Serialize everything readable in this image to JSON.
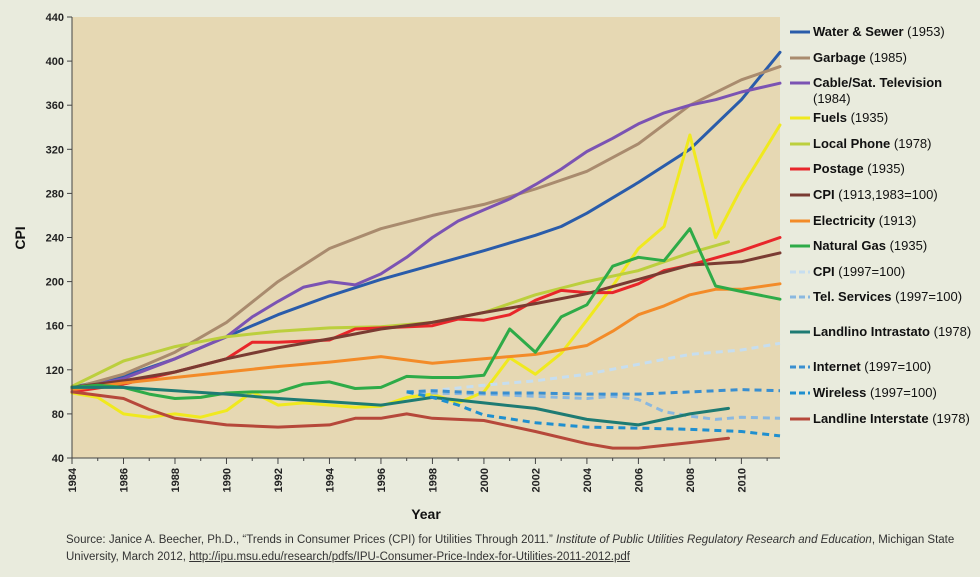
{
  "chart_data": {
    "type": "line",
    "xlabel": "Year",
    "ylabel": "CPI",
    "xlim": [
      1984,
      2011.5
    ],
    "ylim": [
      40,
      440
    ],
    "x_ticks": [
      "1984",
      "1986",
      "1988",
      "1990",
      "1992",
      "1994",
      "1996",
      "1998",
      "2000",
      "2002",
      "2004",
      "2006",
      "2008",
      "2010"
    ],
    "y_ticks": [
      "40",
      "80",
      "120",
      "160",
      "200",
      "240",
      "280",
      "320",
      "360",
      "400",
      "440"
    ],
    "plot_background": "#e6d8b3",
    "grid": false,
    "legend_position": "right",
    "series": [
      {
        "name": "Water & Sewer",
        "year_label": "(1953)",
        "color": "#2a5caa",
        "dashed": false,
        "x": [
          1984,
          1986,
          1988,
          1990,
          1992,
          1994,
          1996,
          1998,
          2000,
          2002,
          2003,
          2004,
          2006,
          2008,
          2010,
          2011.5
        ],
        "y": [
          104,
          114,
          130,
          150,
          170,
          187,
          202,
          215,
          228,
          242,
          250,
          262,
          290,
          320,
          365,
          408
        ]
      },
      {
        "name": "Garbage",
        "year_label": "(1985)",
        "color": "#a98b6e",
        "dashed": false,
        "x": [
          1984,
          1986,
          1988,
          1990,
          1992,
          1994,
          1996,
          1998,
          2000,
          2002,
          2004,
          2006,
          2008,
          2010,
          2011.5
        ],
        "y": [
          103,
          116,
          136,
          163,
          200,
          230,
          248,
          260,
          270,
          284,
          300,
          325,
          360,
          383,
          395
        ]
      },
      {
        "name": "Cable/Sat. Television",
        "year_label": "(1984)",
        "color": "#7b53b3",
        "dashed": false,
        "x": [
          1984,
          1986,
          1988,
          1990,
          1991,
          1992,
          1993,
          1994,
          1995,
          1996,
          1997,
          1998,
          1999,
          2000,
          2001,
          2002,
          2003,
          2004,
          2005,
          2006,
          2007,
          2008,
          2009,
          2010,
          2011.5
        ],
        "y": [
          102,
          112,
          130,
          150,
          168,
          182,
          195,
          200,
          197,
          207,
          222,
          240,
          255,
          265,
          275,
          288,
          302,
          318,
          330,
          343,
          353,
          360,
          365,
          372,
          380
        ]
      },
      {
        "name": "Fuels",
        "year_label": "(1935)",
        "color": "#f0e91e",
        "dashed": false,
        "x": [
          1984,
          1985,
          1986,
          1987,
          1988,
          1989,
          1990,
          1991,
          1992,
          1993,
          1994,
          1995,
          1996,
          1997,
          1998,
          1999,
          2000,
          2001,
          2002,
          2003,
          2004,
          2005,
          2006,
          2007,
          2008,
          2009,
          2010,
          2011.5
        ],
        "y": [
          99,
          95,
          80,
          77,
          80,
          77,
          83,
          100,
          88,
          90,
          88,
          86,
          87,
          95,
          98,
          90,
          100,
          131,
          116,
          135,
          165,
          196,
          230,
          250,
          333,
          240,
          285,
          342
        ]
      },
      {
        "name": "Local Phone",
        "year_label": "(1978)",
        "color": "#bccf3d",
        "dashed": false,
        "x": [
          1984,
          1986,
          1988,
          1990,
          1992,
          1994,
          1996,
          1998,
          2000,
          2002,
          2004,
          2006,
          2008,
          2009.5
        ],
        "y": [
          105,
          128,
          141,
          150,
          155,
          158,
          159,
          163,
          172,
          188,
          200,
          210,
          226,
          236
        ]
      },
      {
        "name": "Postage",
        "year_label": "(1935)",
        "color": "#e8262a",
        "dashed": false,
        "x": [
          1984,
          1986,
          1988,
          1990,
          1991,
          1992,
          1994,
          1995,
          1996,
          1998,
          1999,
          2000,
          2001,
          2002,
          2003,
          2004,
          2005,
          2006,
          2007,
          2008,
          2010,
          2011.5
        ],
        "y": [
          100,
          107,
          118,
          130,
          145,
          145,
          147,
          157,
          158,
          160,
          166,
          165,
          170,
          183,
          192,
          190,
          190,
          198,
          210,
          215,
          228,
          240
        ]
      },
      {
        "name": "CPI",
        "year_label": "(1913,1983=100)",
        "color": "#7a3b32",
        "dashed": false,
        "x": [
          1984,
          1986,
          1988,
          1990,
          1992,
          1994,
          1996,
          1998,
          2000,
          2002,
          2004,
          2006,
          2008,
          2010,
          2011.5
        ],
        "y": [
          104,
          110,
          118,
          130,
          140,
          148,
          157,
          163,
          172,
          180,
          189,
          202,
          215,
          218,
          226
        ]
      },
      {
        "name": "Electricity",
        "year_label": "(1913)",
        "color": "#f38b28",
        "dashed": false,
        "x": [
          1984,
          1986,
          1988,
          1990,
          1992,
          1994,
          1996,
          1998,
          2000,
          2002,
          2004,
          2005,
          2006,
          2007,
          2008,
          2009,
          2010,
          2011.5
        ],
        "y": [
          102,
          108,
          113,
          118,
          123,
          127,
          132,
          126,
          130,
          134,
          142,
          155,
          170,
          178,
          188,
          193,
          193,
          198
        ]
      },
      {
        "name": "Natural Gas",
        "year_label": "(1935)",
        "color": "#2eab48",
        "dashed": false,
        "x": [
          1984,
          1985,
          1986,
          1987,
          1988,
          1989,
          1990,
          1991,
          1992,
          1993,
          1994,
          1995,
          1996,
          1997,
          1998,
          1999,
          2000,
          2001,
          2002,
          2003,
          2004,
          2005,
          2006,
          2007,
          2008,
          2009,
          2010,
          2011.5
        ],
        "y": [
          104,
          106,
          104,
          98,
          94,
          95,
          99,
          100,
          100,
          107,
          109,
          103,
          104,
          114,
          113,
          113,
          115,
          157,
          136,
          168,
          179,
          214,
          222,
          219,
          248,
          196,
          191,
          184
        ]
      },
      {
        "name": "CPI",
        "year_label": "(1997=100)",
        "color": "#c6def0",
        "dashed": true,
        "x": [
          1997,
          1998,
          2000,
          2002,
          2004,
          2006,
          2008,
          2010,
          2011.5
        ],
        "y": [
          100,
          101,
          106,
          110,
          116,
          125,
          134,
          138,
          144
        ]
      },
      {
        "name": "Tel. Services",
        "year_label": "(1997=100)",
        "color": "#8ab8e0",
        "dashed": true,
        "x": [
          1997,
          1998,
          2000,
          2002,
          2004,
          2005,
          2006,
          2007,
          2008,
          2009,
          2010,
          2011.5
        ],
        "y": [
          100,
          99,
          98,
          96,
          94,
          96,
          93,
          82,
          78,
          75,
          77,
          76
        ]
      },
      {
        "name": "Landlino Intrastato",
        "year_label": "(1978)",
        "color": "#1e7b73",
        "dashed": false,
        "x": [
          1984,
          1986,
          1988,
          1990,
          1992,
          1994,
          1996,
          1998,
          2000,
          2002,
          2004,
          2006,
          2008,
          2009.5
        ],
        "y": [
          104,
          104,
          101,
          98,
          94,
          91,
          88,
          95,
          90,
          85,
          75,
          70,
          80,
          85
        ]
      },
      {
        "name": "Internet",
        "year_label": "(1997=100)",
        "color": "#3a8fd0",
        "dashed": true,
        "x": [
          1997,
          1998,
          2000,
          2002,
          2004,
          2006,
          2008,
          2010,
          2011.5
        ],
        "y": [
          100,
          101,
          99,
          99,
          98,
          98,
          100,
          102,
          101
        ]
      },
      {
        "name": "Wireless",
        "year_label": "(1997=100)",
        "color": "#1f8fcf",
        "dashed": true,
        "x": [
          1997,
          1998,
          1999,
          2000,
          2002,
          2004,
          2006,
          2008,
          2010,
          2011.5
        ],
        "y": [
          100,
          95,
          88,
          79,
          72,
          68,
          67,
          66,
          64,
          60
        ]
      },
      {
        "name": "Landline Interstate",
        "year_label": "(1978)",
        "color": "#b6483a",
        "dashed": false,
        "x": [
          1984,
          1986,
          1987,
          1988,
          1990,
          1992,
          1994,
          1995,
          1996,
          1997,
          1998,
          2000,
          2002,
          2004,
          2005,
          2006,
          2008,
          2009.5
        ],
        "y": [
          100,
          94,
          84,
          76,
          70,
          68,
          70,
          76,
          76,
          80,
          76,
          74,
          64,
          53,
          49,
          49,
          54,
          58
        ]
      }
    ]
  },
  "source": {
    "prefix": "Source: Janice A. Beecher, Ph.D., “Trends in Consumer Prices (CPI) for Utilities Through 2011.” ",
    "italic": "Institute of Public Utilities Regulatory Research and Education",
    "middle": ", Michigan State University, March 2012, ",
    "link": "http://ipu.msu.edu/research/pdfs/IPU-Consumer-Price-Index-for-Utilities-2011-2012.pdf"
  }
}
